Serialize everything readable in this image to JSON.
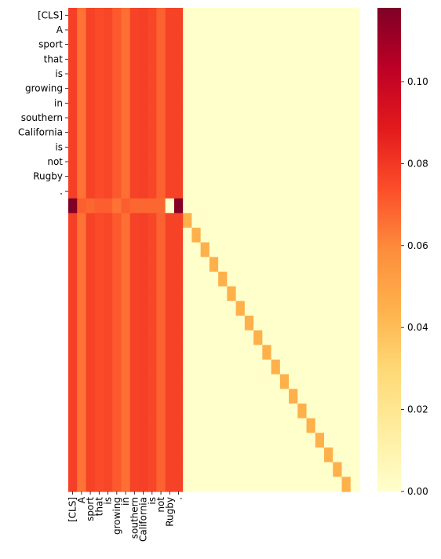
{
  "chart_data": {
    "type": "heatmap",
    "tokens": [
      "[CLS]",
      "A",
      "sport",
      "that",
      "is",
      "growing",
      "in",
      "southern",
      "California",
      "is",
      "not",
      "Rugby",
      "."
    ],
    "rows": 33,
    "cols": 33,
    "row_tick_labels": [
      "[CLS]",
      "A",
      "sport",
      "that",
      "is",
      "growing",
      "in",
      "southern",
      "California",
      "is",
      "not",
      "Rugby",
      "."
    ],
    "col_tick_labels": [
      "[CLS]",
      "A",
      "sport",
      "that",
      "is",
      "growing",
      "in",
      "southern",
      "California",
      "is",
      "not",
      "Rugby",
      "."
    ],
    "token_column_weights": [
      0.078,
      0.065,
      0.077,
      0.075,
      0.076,
      0.071,
      0.066,
      0.077,
      0.078,
      0.076,
      0.069,
      0.077,
      0.077
    ],
    "separator_row": {
      "index": 13,
      "values": [
        0.118,
        0.07,
        0.068,
        0.07,
        0.07,
        0.065,
        0.07,
        0.068,
        0.068,
        0.068,
        0.068,
        0.0,
        0.117
      ]
    },
    "diagonal_value": 0.045,
    "background_value": 0.0,
    "colormap": "YlOrRd",
    "colorbar": {
      "min": 0.0,
      "max": 0.118,
      "ticks": [
        "0.00",
        "0.02",
        "0.04",
        "0.06",
        "0.08",
        "0.10"
      ]
    },
    "grid": false
  }
}
